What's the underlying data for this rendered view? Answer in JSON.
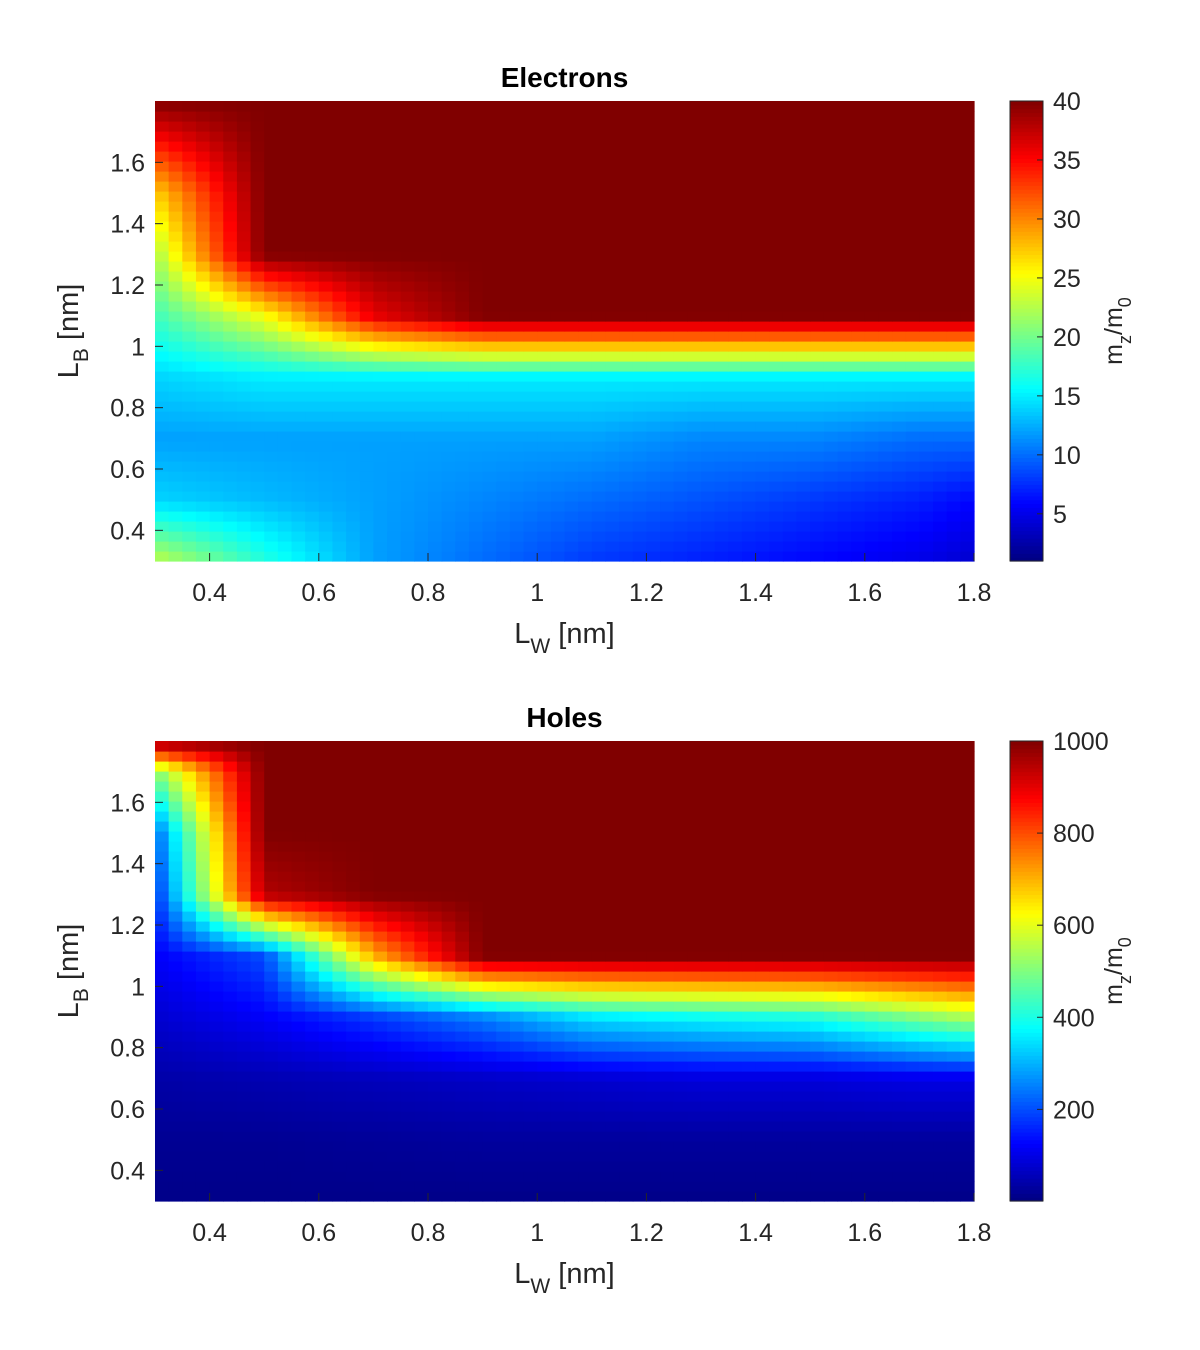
{
  "chart_data": [
    {
      "type": "heatmap",
      "title": "Electrons",
      "xlabel": {
        "main": "L",
        "sub": "W",
        "unit": " [nm]"
      },
      "ylabel": {
        "main": "L",
        "sub": "B",
        "unit": " [nm]"
      },
      "colorbar_label": {
        "m": "m",
        "sub1": "z",
        "slash": "/m",
        "sub2": "0"
      },
      "xlim": [
        0.3,
        1.8
      ],
      "ylim": [
        0.3,
        1.8
      ],
      "xticks": [
        "0.4",
        "0.6",
        "0.8",
        "1",
        "1.2",
        "1.4",
        "1.6",
        "1.8"
      ],
      "yticks": [
        "0.4",
        "0.6",
        "0.8",
        "1",
        "1.2",
        "1.4",
        "1.6"
      ],
      "clim": [
        1,
        40
      ],
      "cticks": [
        "5",
        "10",
        "15",
        "20",
        "25",
        "30",
        "35",
        "40"
      ],
      "colormap": "jet",
      "x": [
        0.3,
        0.5,
        0.7,
        0.9,
        1.1,
        1.3,
        1.5,
        1.7,
        1.8
      ],
      "y": [
        0.3,
        0.5,
        0.7,
        0.9,
        1.1,
        1.3,
        1.5,
        1.7,
        1.8
      ],
      "z": [
        [
          23,
          17,
          12,
          10,
          8,
          7,
          6,
          5,
          4
        ],
        [
          14,
          13,
          12,
          11,
          10,
          9,
          8,
          7,
          6
        ],
        [
          12,
          12,
          12,
          12,
          12,
          11,
          11,
          10,
          10
        ],
        [
          14,
          15,
          15,
          15,
          15,
          15,
          15,
          15,
          15
        ],
        [
          18,
          25,
          36,
          40,
          40,
          40,
          40,
          40,
          40
        ],
        [
          22,
          40,
          40,
          40,
          40,
          40,
          40,
          40,
          40
        ],
        [
          27,
          40,
          40,
          40,
          40,
          40,
          40,
          40,
          40
        ],
        [
          36,
          40,
          40,
          40,
          40,
          40,
          40,
          40,
          40
        ],
        [
          40,
          40,
          40,
          40,
          40,
          40,
          40,
          40,
          40
        ]
      ]
    },
    {
      "type": "heatmap",
      "title": "Holes",
      "xlabel": {
        "main": "L",
        "sub": "W",
        "unit": " [nm]"
      },
      "ylabel": {
        "main": "L",
        "sub": "B",
        "unit": " [nm]"
      },
      "colorbar_label": {
        "m": "m",
        "sub1": "z",
        "slash": "/m",
        "sub2": "0"
      },
      "xlim": [
        0.3,
        1.8
      ],
      "ylim": [
        0.3,
        1.8
      ],
      "xticks": [
        "0.4",
        "0.6",
        "0.8",
        "1",
        "1.2",
        "1.4",
        "1.6",
        "1.8"
      ],
      "yticks": [
        "0.4",
        "0.6",
        "0.8",
        "1",
        "1.2",
        "1.4",
        "1.6"
      ],
      "clim": [
        1,
        1000
      ],
      "cticks": [
        "200",
        "400",
        "600",
        "800",
        "1000"
      ],
      "colormap": "jet",
      "x": [
        0.3,
        0.5,
        0.7,
        0.9,
        1.1,
        1.3,
        1.5,
        1.7,
        1.8
      ],
      "y": [
        0.3,
        0.5,
        0.7,
        0.9,
        1.1,
        1.3,
        1.5,
        1.7,
        1.8
      ],
      "z": [
        [
          10,
          10,
          10,
          10,
          10,
          10,
          10,
          10,
          10
        ],
        [
          20,
          20,
          25,
          30,
          30,
          30,
          30,
          30,
          30
        ],
        [
          40,
          50,
          60,
          70,
          80,
          90,
          90,
          100,
          100
        ],
        [
          80,
          120,
          180,
          250,
          350,
          380,
          400,
          500,
          550
        ],
        [
          120,
          200,
          700,
          1000,
          1000,
          1000,
          1000,
          1000,
          1000
        ],
        [
          170,
          950,
          1000,
          1000,
          1000,
          1000,
          1000,
          1000,
          1000
        ],
        [
          220,
          1000,
          1000,
          1000,
          1000,
          1000,
          1000,
          1000,
          1000
        ],
        [
          500,
          1000,
          1000,
          1000,
          1000,
          1000,
          1000,
          1000,
          1000
        ],
        [
          1000,
          1000,
          1000,
          1000,
          1000,
          1000,
          1000,
          1000,
          1000
        ]
      ]
    }
  ]
}
